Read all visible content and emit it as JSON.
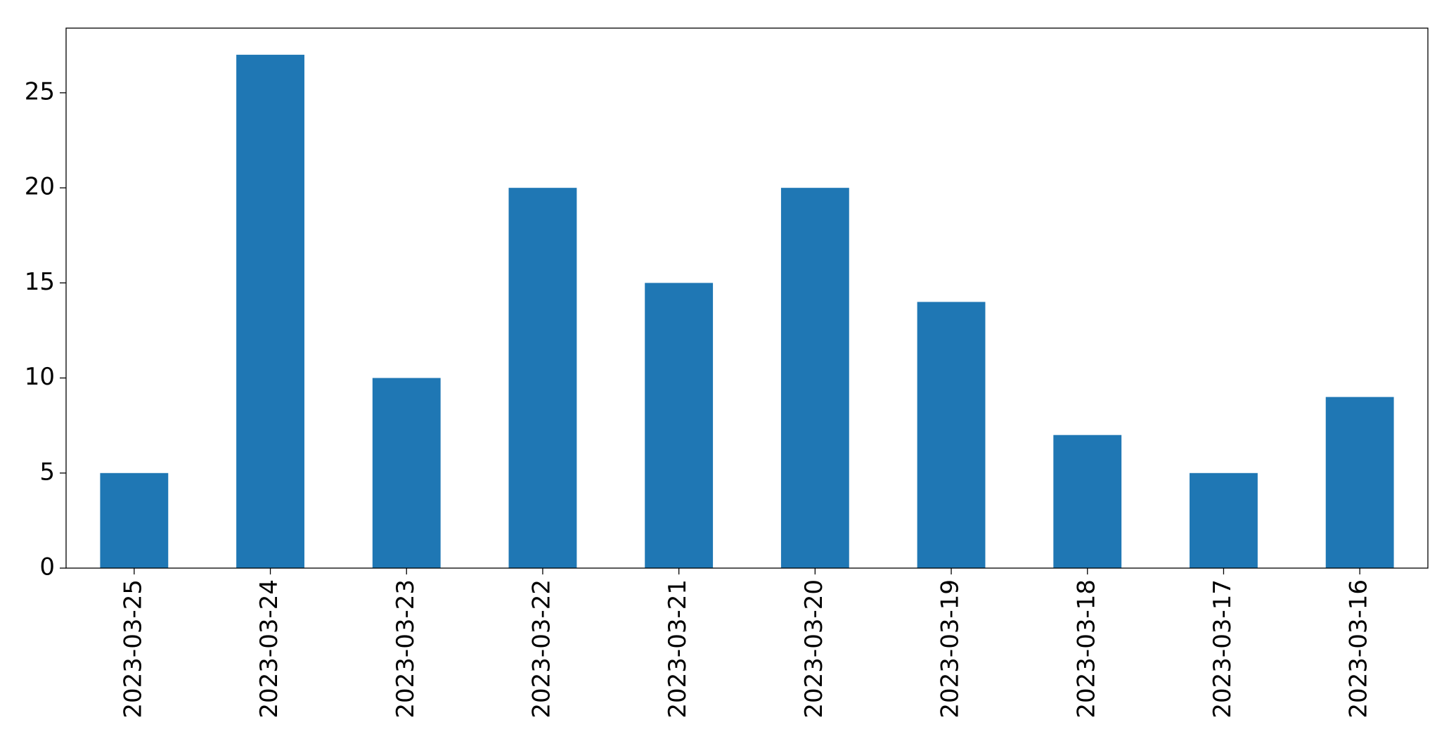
{
  "chart_data": {
    "type": "bar",
    "categories": [
      "2023-03-25",
      "2023-03-24",
      "2023-03-23",
      "2023-03-22",
      "2023-03-21",
      "2023-03-20",
      "2023-03-19",
      "2023-03-18",
      "2023-03-17",
      "2023-03-16"
    ],
    "values": [
      5,
      27,
      10,
      20,
      15,
      20,
      14,
      7,
      5,
      9
    ],
    "color": "#1f77b4",
    "ylim": [
      0,
      28.4
    ],
    "yticks": [
      0,
      5,
      10,
      15,
      20,
      25
    ],
    "grid": false
  }
}
